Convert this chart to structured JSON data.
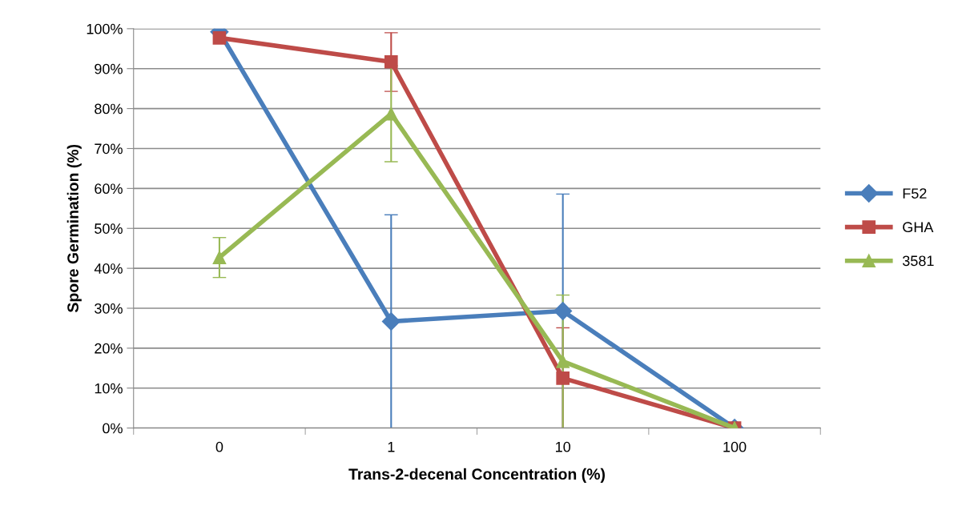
{
  "chart_data": {
    "type": "line",
    "xlabel": "Trans-2-decenal Concentration (%)",
    "ylabel": "Spore Germination (%)",
    "categories": [
      "0",
      "1",
      "10",
      "100"
    ],
    "series": [
      {
        "name": "F52",
        "color": "#4a7ebb",
        "marker": "diamond",
        "values": [
          99.2,
          26.7,
          29.3,
          0
        ],
        "errors": [
          null,
          26.7,
          29.3,
          null
        ]
      },
      {
        "name": "GHA",
        "color": "#be4b48",
        "marker": "square",
        "values": [
          97.7,
          91.7,
          12.5,
          0
        ],
        "errors": [
          null,
          [
            84.3,
            99.0
          ],
          [
            0,
            25.1
          ],
          null
        ]
      },
      {
        "name": "3581",
        "color": "#98b954",
        "marker": "triangle",
        "values": [
          42.7,
          78.7,
          16.7,
          0
        ],
        "errors": [
          5,
          [
            66.7,
            90.7
          ],
          [
            0,
            33.3
          ],
          null
        ]
      }
    ],
    "ylim": [
      0,
      100
    ],
    "yticks": [
      {
        "value": 0,
        "label": "0%"
      },
      {
        "value": 10,
        "label": "10%"
      },
      {
        "value": 20,
        "label": "20%"
      },
      {
        "value": 30,
        "label": "30%"
      },
      {
        "value": 40,
        "label": "40%"
      },
      {
        "value": 50,
        "label": "50%"
      },
      {
        "value": 60,
        "label": "60%"
      },
      {
        "value": 70,
        "label": "70%"
      },
      {
        "value": 80,
        "label": "80%"
      },
      {
        "value": 90,
        "label": "90%"
      },
      {
        "value": 100,
        "label": "100%"
      }
    ],
    "grid": "y",
    "legend": "right",
    "line_style": "solid"
  }
}
